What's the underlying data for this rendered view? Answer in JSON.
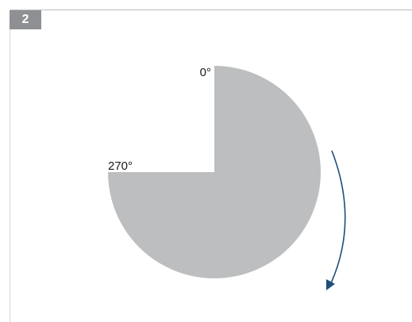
{
  "badge": {
    "number": "2"
  },
  "diagram": {
    "label_start": "0°",
    "label_end": "270°",
    "sector_degrees": 270,
    "colors": {
      "sector": "#bcbec0",
      "arrow": "#1f4e79",
      "badge": "#8e9093",
      "rule": "#b9bbbe"
    },
    "direction": "clockwise"
  }
}
